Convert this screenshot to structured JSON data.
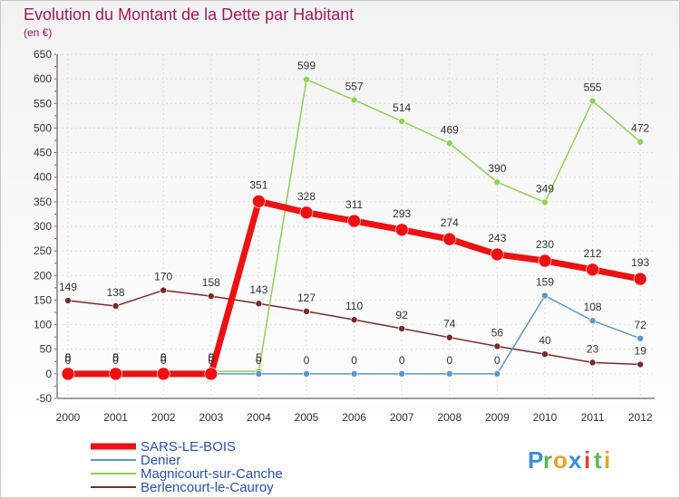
{
  "chart_data": {
    "type": "line",
    "title": "Evolution du Montant de la Dette par Habitant",
    "unit_label": "(en €)",
    "xlabel": "",
    "ylabel": "",
    "ylim": [
      -50,
      650
    ],
    "yticks": [
      -50,
      0,
      50,
      100,
      150,
      200,
      250,
      300,
      350,
      400,
      450,
      500,
      550,
      600,
      650
    ],
    "categories": [
      "2000",
      "2001",
      "2002",
      "2003",
      "2004",
      "2005",
      "2006",
      "2007",
      "2008",
      "2009",
      "2010",
      "2011",
      "2012"
    ],
    "grid": true,
    "legend_position": "bottom-left",
    "series": [
      {
        "name": "Berlencourt-le-Cauroy",
        "color": "#7a2a2a",
        "values": [
          149,
          138,
          170,
          158,
          143,
          127,
          110,
          92,
          74,
          56,
          40,
          23,
          19
        ]
      },
      {
        "name": "Magnicourt-sur-Canche",
        "color": "#8ed252",
        "values": [
          5,
          5,
          5,
          5,
          5,
          599,
          557,
          514,
          469,
          390,
          349,
          555,
          472
        ]
      },
      {
        "name": "Denier",
        "color": "#5a96c8",
        "values": [
          0,
          0,
          0,
          0,
          0,
          0,
          0,
          0,
          0,
          0,
          159,
          108,
          72
        ]
      },
      {
        "name": "SARS-LE-BOIS",
        "color": "#ee1111",
        "values": [
          0,
          0,
          0,
          0,
          351,
          328,
          311,
          293,
          274,
          243,
          230,
          212,
          193
        ]
      }
    ],
    "legend_order": [
      "SARS-LE-BOIS",
      "Denier",
      "Magnicourt-sur-Canche",
      "Berlencourt-le-Cauroy"
    ]
  },
  "logo": {
    "letters": [
      "P",
      "r",
      "o",
      "x",
      "i",
      "t",
      "i"
    ],
    "colors": [
      "#3a8fd8",
      "#5cb85c",
      "#f0a020",
      "#3a8fd8",
      "#e04040",
      "#5cb85c",
      "#f0a020"
    ]
  }
}
